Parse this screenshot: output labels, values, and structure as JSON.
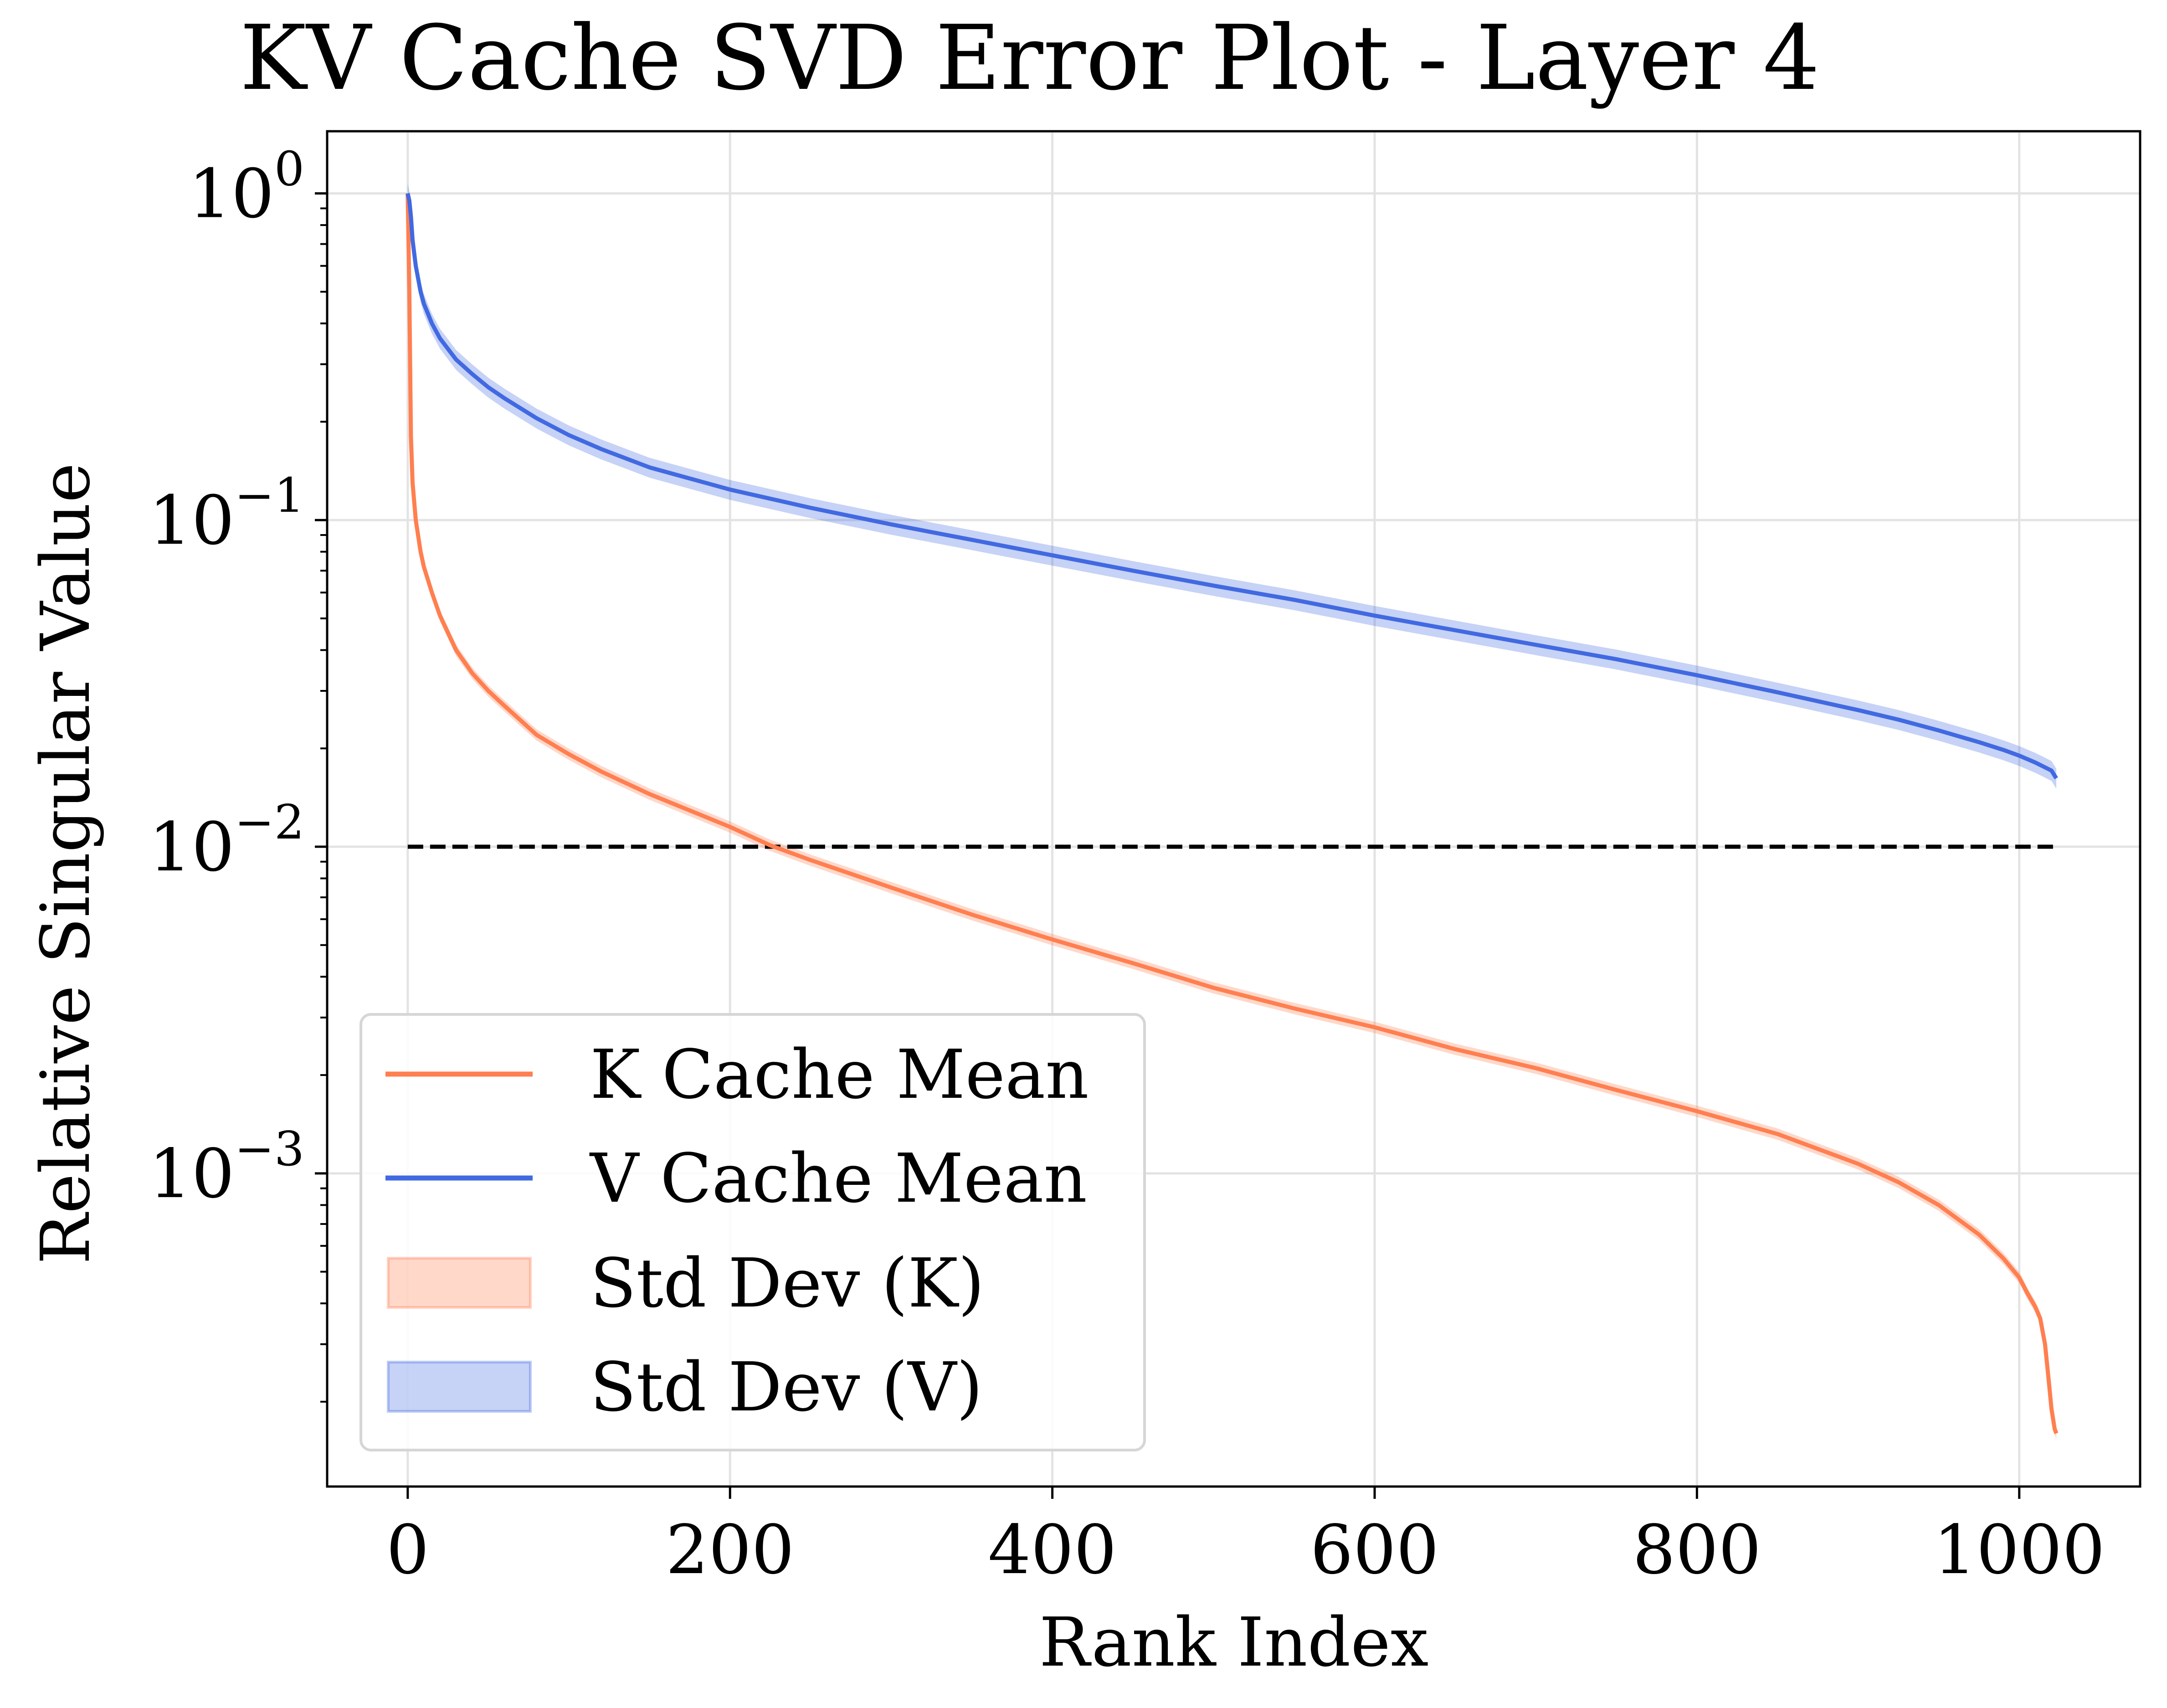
{
  "chart_data": {
    "type": "line",
    "title": "KV Cache SVD Error Plot - Layer 4",
    "xlabel": "Rank Index",
    "ylabel": "Relative Singular Value",
    "xlim": [
      -50,
      1075
    ],
    "ylim": [
      0.00011,
      1.55
    ],
    "yscale": "log",
    "grid": true,
    "legend_position": "lower-left",
    "xticks": [
      0,
      200,
      400,
      600,
      800,
      1000
    ],
    "xtick_labels": [
      "0",
      "200",
      "400",
      "600",
      "800",
      "1000"
    ],
    "yticks": [
      1,
      0.1,
      0.01,
      0.001
    ],
    "ytick_labels": [
      {
        "base": "10",
        "exp": "0"
      },
      {
        "base": "10",
        "exp": "−1"
      },
      {
        "base": "10",
        "exp": "−2"
      },
      {
        "base": "10",
        "exp": "−3"
      }
    ],
    "threshold": {
      "value": 0.01,
      "x_range": [
        0,
        1023
      ],
      "color": "#000000",
      "style": "dashed"
    },
    "series": [
      {
        "name": "K Cache Mean",
        "color": "#ff7f50",
        "x": [
          0,
          1,
          2,
          3,
          5,
          8,
          10,
          15,
          20,
          30,
          40,
          50,
          60,
          80,
          100,
          120,
          150,
          200,
          225,
          250,
          300,
          350,
          400,
          450,
          500,
          550,
          600,
          650,
          700,
          750,
          800,
          850,
          900,
          925,
          950,
          975,
          990,
          1000,
          1005,
          1010,
          1013,
          1016,
          1018,
          1020,
          1022,
          1023
        ],
        "y": [
          1.0,
          0.5,
          0.18,
          0.13,
          0.1,
          0.08,
          0.072,
          0.06,
          0.051,
          0.04,
          0.034,
          0.03,
          0.027,
          0.022,
          0.0192,
          0.017,
          0.0145,
          0.0115,
          0.0101,
          0.0091,
          0.0075,
          0.0062,
          0.0052,
          0.0044,
          0.0037,
          0.0032,
          0.0028,
          0.0024,
          0.0021,
          0.0018,
          0.00155,
          0.00132,
          0.00107,
          0.00094,
          0.0008,
          0.00065,
          0.00055,
          0.00048,
          0.00043,
          0.00039,
          0.00036,
          0.0003,
          0.00024,
          0.00019,
          0.000165,
          0.00016
        ],
        "std_fraction": 0.04
      },
      {
        "name": "V Cache Mean",
        "color": "#4169e1",
        "x": [
          0,
          1,
          2,
          3,
          5,
          8,
          10,
          15,
          20,
          30,
          40,
          50,
          60,
          80,
          100,
          120,
          150,
          200,
          250,
          300,
          350,
          400,
          450,
          500,
          550,
          600,
          650,
          700,
          750,
          800,
          850,
          900,
          925,
          950,
          975,
          990,
          1000,
          1010,
          1015,
          1020,
          1023
        ],
        "y": [
          1.0,
          0.95,
          0.85,
          0.72,
          0.6,
          0.5,
          0.46,
          0.4,
          0.36,
          0.31,
          0.28,
          0.255,
          0.236,
          0.205,
          0.182,
          0.165,
          0.145,
          0.124,
          0.109,
          0.097,
          0.087,
          0.078,
          0.07,
          0.063,
          0.057,
          0.051,
          0.046,
          0.0415,
          0.0375,
          0.0335,
          0.0297,
          0.0262,
          0.0245,
          0.0227,
          0.0209,
          0.0198,
          0.019,
          0.0181,
          0.0176,
          0.0171,
          0.0162
        ],
        "std_fraction": 0.07
      }
    ],
    "legend": [
      {
        "label": "K Cache Mean",
        "kind": "line",
        "color": "#ff7f50"
      },
      {
        "label": "V Cache Mean",
        "kind": "line",
        "color": "#4169e1"
      },
      {
        "label": "Std Dev (K)",
        "kind": "band",
        "color": "#ff7f50"
      },
      {
        "label": "Std Dev (V)",
        "kind": "band",
        "color": "#4169e1"
      }
    ]
  }
}
